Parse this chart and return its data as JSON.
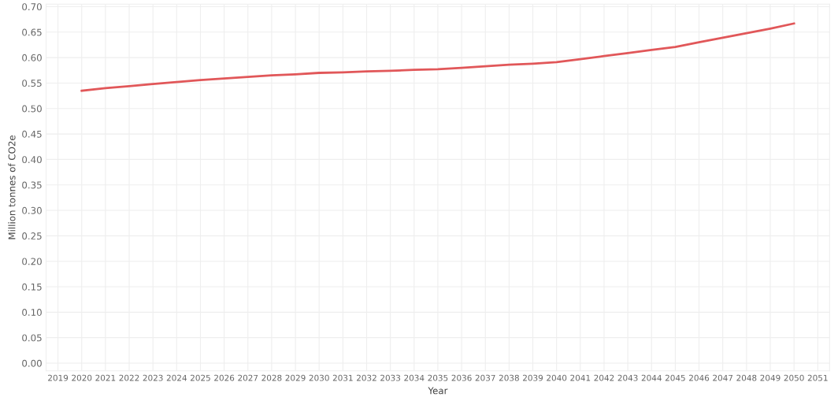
{
  "chart_data": {
    "type": "line",
    "xlabel": "Year",
    "ylabel": "Million tonnes of CO2e",
    "x": [
      2020,
      2021,
      2022,
      2023,
      2024,
      2025,
      2026,
      2027,
      2028,
      2029,
      2030,
      2031,
      2032,
      2033,
      2034,
      2035,
      2036,
      2037,
      2038,
      2039,
      2040,
      2041,
      2042,
      2043,
      2044,
      2045,
      2046,
      2047,
      2048,
      2049,
      2050
    ],
    "series": [
      {
        "color": "#e15759",
        "values": [
          0.535,
          0.54,
          0.544,
          0.548,
          0.552,
          0.556,
          0.559,
          0.562,
          0.565,
          0.567,
          0.57,
          0.571,
          0.573,
          0.574,
          0.576,
          0.577,
          0.58,
          0.583,
          0.586,
          0.588,
          0.591,
          0.597,
          0.603,
          0.609,
          0.615,
          0.621,
          0.63,
          0.639,
          0.648,
          0.657,
          0.667
        ]
      }
    ],
    "xlim": [
      2018.5,
      2051.5
    ],
    "xticks": [
      2019,
      2020,
      2021,
      2022,
      2023,
      2024,
      2025,
      2026,
      2027,
      2028,
      2029,
      2030,
      2031,
      2032,
      2033,
      2034,
      2035,
      2036,
      2037,
      2038,
      2039,
      2040,
      2041,
      2042,
      2043,
      2044,
      2045,
      2046,
      2047,
      2048,
      2049,
      2050,
      2051
    ],
    "ylim": [
      -0.015,
      0.705
    ],
    "yticks": [
      {
        "value": 0,
        "label": "0.00"
      },
      {
        "value": 0.05,
        "label": "0.05"
      },
      {
        "value": 0.1,
        "label": "0.10"
      },
      {
        "value": 0.15,
        "label": "0.15"
      },
      {
        "value": 0.2,
        "label": "0.20"
      },
      {
        "value": 0.25,
        "label": "0.25"
      },
      {
        "value": 0.3,
        "label": "0.30"
      },
      {
        "value": 0.35,
        "label": "0.35"
      },
      {
        "value": 0.4,
        "label": "0.40"
      },
      {
        "value": 0.45,
        "label": "0.45"
      },
      {
        "value": 0.5,
        "label": "0.50"
      },
      {
        "value": 0.55,
        "label": "0.55"
      },
      {
        "value": 0.6,
        "label": "0.60"
      },
      {
        "value": 0.65,
        "label": "0.65"
      },
      {
        "value": 0.7,
        "label": "0.70"
      }
    ],
    "grid": true,
    "marker": "none",
    "line_style": "solid"
  }
}
